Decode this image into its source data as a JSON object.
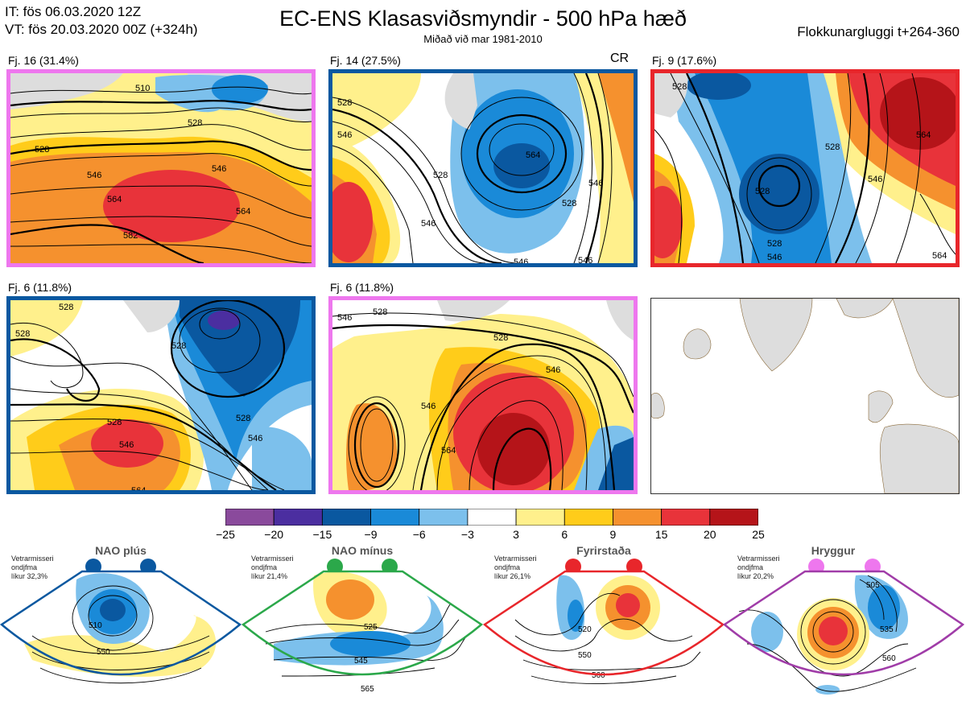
{
  "header": {
    "issue_time": "IT: fös 06.03.2020 12Z",
    "valid_time": "VT: fös 20.03.2020 00Z  (+324h)",
    "title": "EC-ENS Klasasviðsmyndir - 500 hPa hæð",
    "subtitle": "Miðað við mar 1981-2010",
    "window": "Flokkunargluggi t+264-360"
  },
  "panels": [
    {
      "label": "Fj. 16 (31.4%)",
      "border_color": "#ee77ee",
      "regime": "Hryggur"
    },
    {
      "label": "Fj. 14 (27.5%)",
      "border_color": "#0a58a0",
      "regime": "NAO plús",
      "tag": "CR"
    },
    {
      "label": "Fj. 9 (17.6%)",
      "border_color": "#e8262b",
      "regime": "Fyrirstaða"
    },
    {
      "label": "Fj. 6 (11.8%)",
      "border_color": "#0a58a0",
      "regime": "NAO plús"
    },
    {
      "label": "Fj. 6 (11.8%)",
      "border_color": "#ee77ee",
      "regime": "Hryggur"
    },
    {
      "label": "",
      "border_color": "#333333",
      "regime": ""
    }
  ],
  "contour_labels": {
    "p1": [
      "510",
      "528",
      "528",
      "546",
      "546",
      "564",
      "564",
      "582"
    ],
    "p2": [
      "528",
      "546",
      "528",
      "546",
      "546",
      "528",
      "546",
      "546",
      "564"
    ],
    "p3": [
      "528",
      "564",
      "528",
      "546",
      "528",
      "546",
      "528",
      "564"
    ],
    "p4": [
      "528",
      "528",
      "528",
      "528",
      "546",
      "528",
      "546",
      "564"
    ],
    "p5": [
      "546",
      "528",
      "528",
      "546",
      "546",
      "564"
    ]
  },
  "colorbar": {
    "ticks": [
      "−25",
      "−20",
      "−15",
      "−9",
      "−6",
      "−3",
      "3",
      "6",
      "9",
      "15",
      "20",
      "25"
    ],
    "colors": [
      "#8a4a9c",
      "#4b2ea0",
      "#0a58a0",
      "#1a8ad8",
      "#7cc0ec",
      "#ffffff",
      "#fff08c",
      "#ffcc1a",
      "#f5912e",
      "#e8333a",
      "#b51419"
    ]
  },
  "chart_data": {
    "type": "heatmap",
    "title": "EC-ENS Klasasviðsmyndir - 500 hPa hæð",
    "subtitle": "Miðað við mar 1981-2010",
    "colorbar_bounds": [
      -25,
      -20,
      -15,
      -9,
      -6,
      -3,
      3,
      6,
      9,
      15,
      20,
      25
    ],
    "clusters": [
      {
        "name": "Fj. 16",
        "probability_pct": 31.4
      },
      {
        "name": "Fj. 14",
        "probability_pct": 27.5
      },
      {
        "name": "Fj. 9",
        "probability_pct": 17.6
      },
      {
        "name": "Fj. 6",
        "probability_pct": 11.8
      },
      {
        "name": "Fj. 6",
        "probability_pct": 11.8
      }
    ]
  },
  "regimes": [
    {
      "name": "NAO plús",
      "note": [
        "Vetrarmisseri",
        "ondjfma",
        "líkur 32,3%"
      ],
      "color": "#0a58a0",
      "contours": [
        "510",
        "550"
      ]
    },
    {
      "name": "NAO mínus",
      "note": [
        "Vetrarmisseri",
        "ondjfma",
        "líkur 21,4%"
      ],
      "color": "#2ba84a",
      "contours": [
        "525",
        "545",
        "565"
      ]
    },
    {
      "name": "Fyrirstaða",
      "note": [
        "Vetrarmisseri",
        "ondjfma",
        "líkur 26,1%"
      ],
      "color": "#e8262b",
      "contours": [
        "520",
        "550",
        "560"
      ]
    },
    {
      "name": "Hryggur",
      "note": [
        "Vetrarmisseri",
        "ondjfma",
        "líkur 20,2%"
      ],
      "color": "#a03ca8",
      "contours": [
        "505",
        "535",
        "560"
      ]
    }
  ]
}
